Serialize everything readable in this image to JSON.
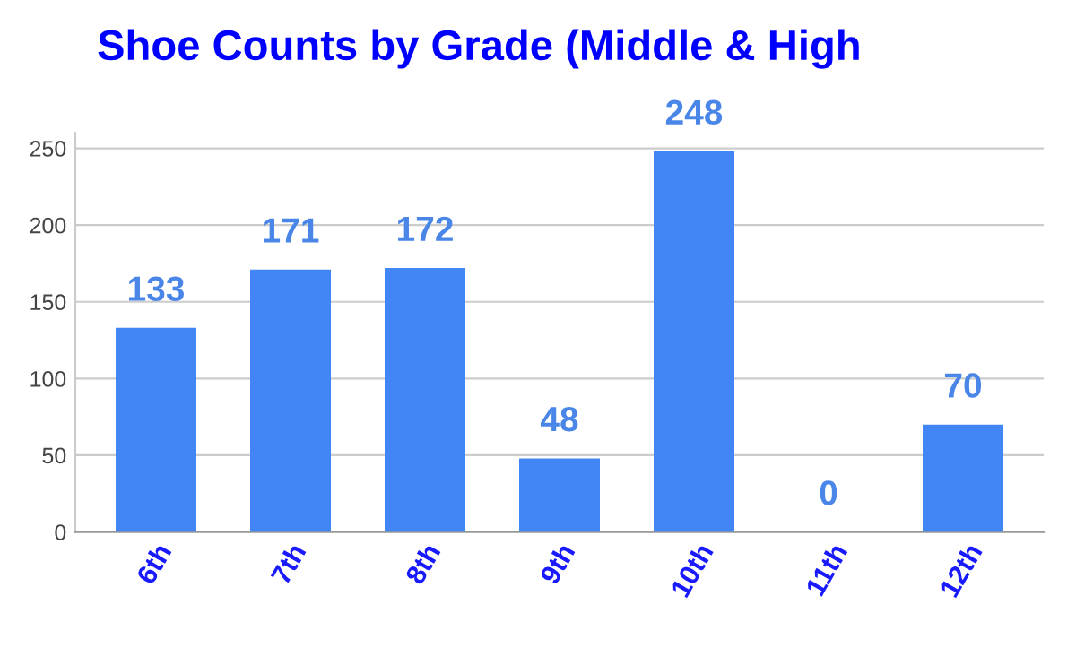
{
  "chart_data": {
    "type": "bar",
    "title": "Shoe Counts by Grade (Middle & High",
    "categories": [
      "6th",
      "7th",
      "8th",
      "9th",
      "10th",
      "11th",
      "12th"
    ],
    "values": [
      133,
      171,
      172,
      48,
      248,
      0,
      70
    ],
    "color": "#4285f4",
    "ylim": [
      0,
      260
    ],
    "yticks": [
      0,
      50,
      100,
      150,
      200,
      250
    ],
    "grid": "y",
    "data_labels": true
  }
}
